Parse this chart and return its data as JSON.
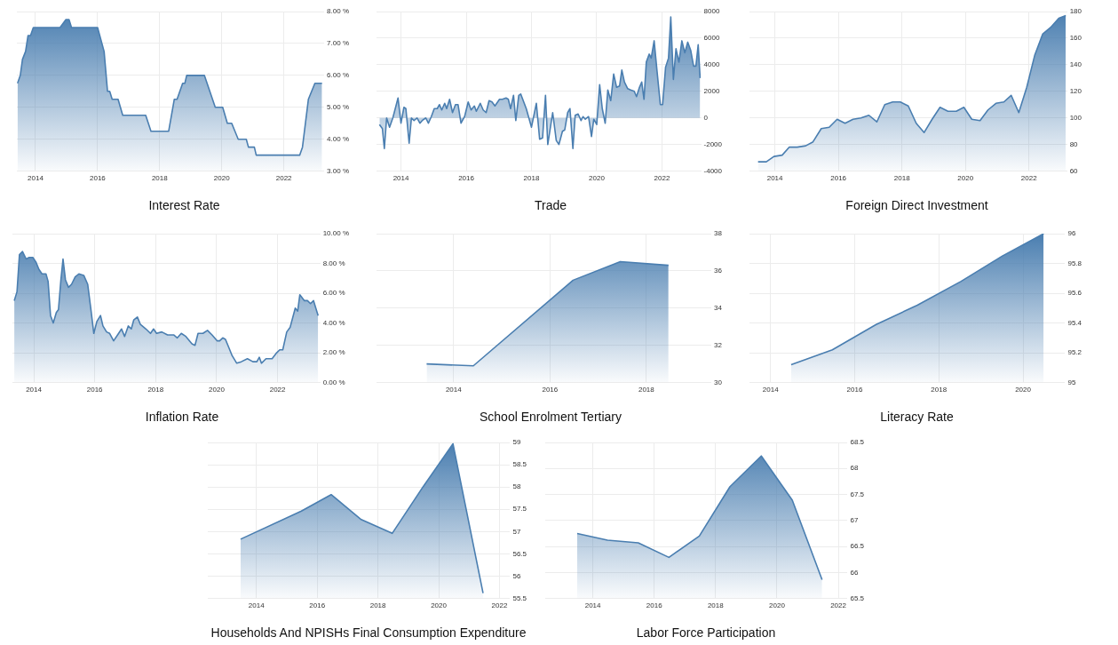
{
  "chart_data": [
    {
      "type": "area",
      "title": "Interest Rate",
      "color": "#4a7eb0",
      "marker": "none",
      "grid": true,
      "legend": false,
      "x": [
        2013.42,
        2013.51,
        2013.58,
        2013.68,
        2013.76,
        2013.84,
        2013.93,
        2014.79,
        2014.98,
        2015.08,
        2015.16,
        2016.0,
        2016.21,
        2016.32,
        2016.39,
        2016.47,
        2016.66,
        2016.81,
        2017.55,
        2017.72,
        2018.29,
        2018.47,
        2018.56,
        2018.74,
        2018.81,
        2018.87,
        2019.44,
        2019.79,
        2020.03,
        2020.18,
        2020.32,
        2020.53,
        2020.79,
        2020.86,
        2021.05,
        2021.11,
        2022.51,
        2022.6,
        2022.79,
        2023.0,
        2023.23
      ],
      "values": [
        5.75,
        6.0,
        6.5,
        6.75,
        7.25,
        7.25,
        7.5,
        7.5,
        7.75,
        7.75,
        7.5,
        7.5,
        6.75,
        5.5,
        5.5,
        5.25,
        5.25,
        4.75,
        4.75,
        4.25,
        4.25,
        5.25,
        5.25,
        5.75,
        5.75,
        6.0,
        6.0,
        5.0,
        5.0,
        4.5,
        4.5,
        4.0,
        4.0,
        3.75,
        3.75,
        3.5,
        3.5,
        3.75,
        5.25,
        5.75,
        5.75
      ],
      "xlim": [
        2013.4,
        2023.3
      ],
      "xticks": [
        2014,
        2016,
        2018,
        2020,
        2022
      ],
      "ylim": [
        3,
        8
      ],
      "yticks": [
        {
          "value": 3,
          "label": "3.00 %"
        },
        {
          "value": 4,
          "label": "4.00 %"
        },
        {
          "value": 5,
          "label": "5.00 %"
        },
        {
          "value": 6,
          "label": "6.00 %"
        },
        {
          "value": 7,
          "label": "7.00 %"
        },
        {
          "value": 8,
          "label": "8.00 %"
        }
      ]
    },
    {
      "type": "area",
      "title": "Trade",
      "color": "#4a7eb0",
      "marker": "none",
      "grid": true,
      "legend": false,
      "x": [
        2013.34,
        2013.43,
        2013.49,
        2013.56,
        2013.65,
        2013.75,
        2013.91,
        2014.0,
        2014.09,
        2014.15,
        2014.25,
        2014.32,
        2014.4,
        2014.49,
        2014.58,
        2014.65,
        2014.76,
        2014.84,
        2014.93,
        2015.02,
        2015.11,
        2015.18,
        2015.25,
        2015.34,
        2015.4,
        2015.49,
        2015.58,
        2015.67,
        2015.75,
        2015.84,
        2015.95,
        2016.06,
        2016.15,
        2016.25,
        2016.31,
        2016.43,
        2016.52,
        2016.61,
        2016.7,
        2016.79,
        2016.88,
        2017.02,
        2017.11,
        2017.22,
        2017.29,
        2017.36,
        2017.45,
        2017.52,
        2017.61,
        2017.67,
        2017.84,
        2018.0,
        2018.15,
        2018.25,
        2018.34,
        2018.43,
        2018.5,
        2018.65,
        2018.76,
        2018.84,
        2018.95,
        2019.02,
        2019.11,
        2019.18,
        2019.27,
        2019.34,
        2019.43,
        2019.52,
        2019.58,
        2019.65,
        2019.75,
        2019.84,
        2019.91,
        2020.0,
        2020.09,
        2020.17,
        2020.26,
        2020.34,
        2020.43,
        2020.52,
        2020.61,
        2020.7,
        2020.77,
        2020.85,
        2020.95,
        2021.04,
        2021.15,
        2021.22,
        2021.31,
        2021.38,
        2021.45,
        2021.52,
        2021.61,
        2021.67,
        2021.76,
        2021.85,
        2021.95,
        2022.02,
        2022.11,
        2022.2,
        2022.27,
        2022.35,
        2022.43,
        2022.52,
        2022.61,
        2022.7,
        2022.79,
        2022.88,
        2022.97,
        2023.04,
        2023.11,
        2023.17
      ],
      "values": [
        -500,
        -800,
        -2300,
        0,
        -700,
        0,
        1500,
        -400,
        800,
        700,
        -1900,
        0,
        -200,
        0,
        -400,
        -200,
        0,
        -400,
        100,
        700,
        700,
        1000,
        600,
        1100,
        700,
        1400,
        400,
        1000,
        1000,
        -400,
        100,
        1200,
        600,
        900,
        500,
        1100,
        600,
        400,
        1300,
        1200,
        900,
        1400,
        1400,
        1500,
        1400,
        700,
        1700,
        -200,
        1700,
        1800,
        700,
        -700,
        1100,
        -1600,
        -1500,
        1700,
        -2000,
        400,
        -1700,
        -2000,
        -1000,
        -900,
        400,
        700,
        -2300,
        200,
        300,
        -200,
        100,
        -100,
        100,
        -1400,
        -100,
        -500,
        2500,
        700,
        -400,
        2100,
        1300,
        3300,
        2300,
        2400,
        3600,
        2700,
        2200,
        2100,
        2000,
        1600,
        2300,
        2700,
        1400,
        4200,
        4800,
        4500,
        5800,
        3500,
        1000,
        1000,
        3800,
        4500,
        7600,
        2900,
        5200,
        4200,
        5800,
        4900,
        5700,
        5100,
        3900,
        3900,
        5500,
        3000
      ],
      "xlim": [
        2013.25,
        2023.2
      ],
      "xticks": [
        2014,
        2016,
        2018,
        2020,
        2022
      ],
      "ylim": [
        -4000,
        8000
      ],
      "yticks": [
        -4000,
        -2000,
        0,
        2000,
        4000,
        6000,
        8000
      ]
    },
    {
      "type": "area",
      "title": "Foreign Direct Investment",
      "color": "#4a7eb0",
      "marker": "none",
      "grid": true,
      "legend": false,
      "x": [
        2013.47,
        2013.73,
        2013.97,
        2014.23,
        2014.45,
        2014.7,
        2014.97,
        2015.2,
        2015.46,
        2015.71,
        2015.96,
        2016.21,
        2016.46,
        2016.71,
        2016.96,
        2017.21,
        2017.46,
        2017.71,
        2017.95,
        2018.2,
        2018.45,
        2018.7,
        2018.95,
        2019.2,
        2019.45,
        2019.71,
        2019.95,
        2020.2,
        2020.46,
        2020.71,
        2020.96,
        2021.21,
        2021.44,
        2021.68,
        2021.93,
        2022.18,
        2022.43,
        2022.68,
        2022.94,
        2023.16
      ],
      "values": [
        67,
        67,
        71,
        72,
        78,
        78,
        79,
        82,
        92,
        93,
        99,
        96,
        99,
        100,
        102,
        97,
        110,
        112,
        112,
        109,
        96,
        89,
        99,
        108,
        105,
        105,
        108,
        99,
        98,
        106,
        111,
        112,
        117,
        104,
        123,
        147,
        163,
        168,
        175,
        177
      ],
      "xlim": [
        2013.2,
        2023.2
      ],
      "xticks": [
        2014,
        2016,
        2018,
        2020,
        2022
      ],
      "ylim": [
        60,
        180
      ],
      "yticks": [
        60,
        80,
        100,
        120,
        140,
        160,
        180
      ]
    },
    {
      "type": "area",
      "title": "Inflation Rate",
      "color": "#4a7eb0",
      "marker": "none",
      "grid": true,
      "legend": false,
      "x": [
        2013.36,
        2013.45,
        2013.53,
        2013.63,
        2013.75,
        2013.85,
        2013.97,
        2014.07,
        2014.17,
        2014.27,
        2014.4,
        2014.47,
        2014.55,
        2014.64,
        2014.74,
        2014.81,
        2014.89,
        2014.96,
        2015.04,
        2015.14,
        2015.24,
        2015.36,
        2015.48,
        2015.64,
        2015.77,
        2015.87,
        2015.97,
        2016.07,
        2016.19,
        2016.27,
        2016.39,
        2016.49,
        2016.62,
        2016.75,
        2016.88,
        2016.98,
        2017.1,
        2017.2,
        2017.28,
        2017.4,
        2017.5,
        2017.68,
        2017.83,
        2017.93,
        2018.03,
        2018.2,
        2018.39,
        2018.59,
        2018.71,
        2018.84,
        2018.99,
        2019.19,
        2019.29,
        2019.39,
        2019.55,
        2019.7,
        2019.85,
        2020.02,
        2020.1,
        2020.2,
        2020.29,
        2020.41,
        2020.51,
        2020.66,
        2020.81,
        2021.01,
        2021.19,
        2021.32,
        2021.4,
        2021.47,
        2021.62,
        2021.82,
        2021.97,
        2022.07,
        2022.17,
        2022.3,
        2022.41,
        2022.58,
        2022.66,
        2022.73,
        2022.88,
        2022.98,
        2023.08,
        2023.18,
        2023.33
      ],
      "values": [
        5.5,
        6.1,
        8.6,
        8.8,
        8.3,
        8.4,
        8.4,
        8.1,
        7.6,
        7.3,
        7.3,
        6.8,
        4.5,
        4.0,
        4.7,
        4.9,
        6.9,
        8.3,
        6.9,
        6.4,
        6.6,
        7.1,
        7.3,
        7.2,
        6.6,
        5.0,
        3.3,
        4.1,
        4.5,
        3.8,
        3.4,
        3.3,
        2.8,
        3.2,
        3.6,
        3.1,
        3.8,
        3.6,
        4.2,
        4.4,
        3.9,
        3.6,
        3.3,
        3.6,
        3.3,
        3.4,
        3.2,
        3.2,
        3.0,
        3.3,
        3.1,
        2.6,
        2.5,
        3.3,
        3.3,
        3.5,
        3.2,
        2.8,
        2.8,
        3.0,
        2.9,
        2.3,
        1.8,
        1.3,
        1.4,
        1.6,
        1.4,
        1.4,
        1.7,
        1.3,
        1.6,
        1.6,
        2.0,
        2.2,
        2.2,
        3.4,
        3.7,
        5.0,
        4.8,
        5.9,
        5.5,
        5.5,
        5.3,
        5.5,
        4.5
      ],
      "xlim": [
        2013.3,
        2023.4
      ],
      "xticks": [
        2014,
        2016,
        2018,
        2020,
        2022
      ],
      "ylim": [
        0,
        10
      ],
      "yticks": [
        {
          "value": 0,
          "label": "0.00 %"
        },
        {
          "value": 2,
          "label": "2.00 %"
        },
        {
          "value": 4,
          "label": "4.00 %"
        },
        {
          "value": 6,
          "label": "6.00 %"
        },
        {
          "value": 8,
          "label": "8.00 %"
        },
        {
          "value": 10,
          "label": "10.00 %"
        }
      ]
    },
    {
      "type": "area",
      "title": "School Enrolment Tertiary",
      "color": "#4a7eb0",
      "marker": "none",
      "grid": true,
      "legend": false,
      "x": [
        2013.44,
        2014.41,
        2016.48,
        2017.46,
        2018.46
      ],
      "values": [
        31.0,
        30.9,
        35.5,
        36.5,
        36.3
      ],
      "xlim": [
        2012.4,
        2019.35
      ],
      "xticks": [
        2014,
        2016,
        2018
      ],
      "ylim": [
        30,
        38
      ],
      "yticks": [
        30,
        32,
        34,
        36,
        38
      ]
    },
    {
      "type": "area",
      "title": "Literacy Rate",
      "color": "#4a7eb0",
      "marker": "none",
      "grid": true,
      "legend": false,
      "x": [
        2014.49,
        2015.47,
        2016.51,
        2017.49,
        2018.53,
        2019.51,
        2020.49
      ],
      "values": [
        95.12,
        95.22,
        95.39,
        95.52,
        95.68,
        95.85,
        96.0
      ],
      "xlim": [
        2013.5,
        2021.0
      ],
      "xticks": [
        2014,
        2016,
        2018,
        2020
      ],
      "ylim": [
        95,
        96
      ],
      "yticks": [
        95,
        95.2,
        95.4,
        95.6,
        95.8,
        96
      ]
    },
    {
      "type": "area",
      "title": "Households And NPISHs Final Consumption Expenditure",
      "color": "#4a7eb0",
      "marker": "none",
      "grid": true,
      "legend": false,
      "x": [
        2013.48,
        2015.48,
        2016.46,
        2017.45,
        2018.47,
        2019.48,
        2020.47,
        2021.46
      ],
      "values": [
        56.83,
        57.46,
        57.83,
        57.27,
        56.96,
        58.0,
        58.97,
        55.62
      ],
      "xlim": [
        2012.4,
        2022.35
      ],
      "xticks": [
        2014,
        2016,
        2018,
        2020,
        2022
      ],
      "ylim": [
        55.5,
        59
      ],
      "yticks": [
        55.5,
        56,
        56.5,
        57,
        57.5,
        58,
        58.5,
        59
      ]
    },
    {
      "type": "area",
      "title": "Labor Force Participation",
      "color": "#4a7eb0",
      "marker": "none",
      "grid": true,
      "legend": false,
      "x": [
        2013.49,
        2014.48,
        2015.48,
        2016.48,
        2017.47,
        2018.47,
        2019.49,
        2020.5,
        2021.47
      ],
      "values": [
        66.75,
        66.62,
        66.57,
        66.29,
        66.7,
        67.65,
        68.24,
        67.39,
        65.86
      ],
      "xlim": [
        2012.45,
        2022.3
      ],
      "xticks": [
        2014,
        2016,
        2018,
        2020,
        2022
      ],
      "ylim": [
        65.5,
        68.5
      ],
      "yticks": [
        65.5,
        66,
        66.5,
        67,
        67.5,
        68,
        68.5
      ]
    }
  ]
}
